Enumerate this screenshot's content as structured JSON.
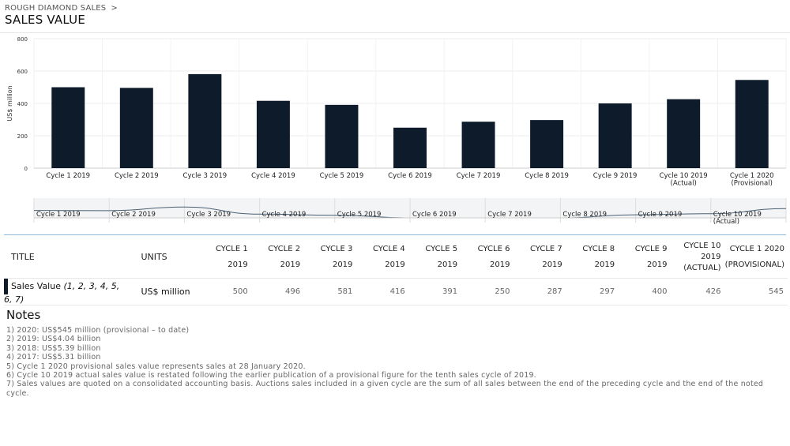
{
  "breadcrumb": {
    "section": "ROUGH DIAMOND SALES",
    "separator": ">"
  },
  "page_title": "SALES VALUE",
  "chart_data": {
    "type": "bar",
    "ylabel": "US$ million",
    "ylim": [
      0,
      800
    ],
    "yticks": [
      0,
      200,
      400,
      600,
      800
    ],
    "categories": [
      [
        "Cycle 1 2019"
      ],
      [
        "Cycle 2 2019"
      ],
      [
        "Cycle 3 2019"
      ],
      [
        "Cycle 4 2019"
      ],
      [
        "Cycle 5 2019"
      ],
      [
        "Cycle 6 2019"
      ],
      [
        "Cycle 7 2019"
      ],
      [
        "Cycle 8 2019"
      ],
      [
        "Cycle 9 2019"
      ],
      [
        "Cycle 10 2019",
        "(Actual)"
      ],
      [
        "Cycle 1 2020",
        "(Provisional)"
      ]
    ],
    "values": [
      500,
      496,
      581,
      416,
      391,
      250,
      287,
      297,
      400,
      426,
      545
    ],
    "color": "#0d1b2a",
    "grid": true,
    "navigator": {
      "labels": [
        [
          "Cycle 1 2019"
        ],
        [
          "Cycle 2 2019"
        ],
        [
          "Cycle 3 2019"
        ],
        [
          "Cycle 4 2019"
        ],
        [
          "Cycle 5 2019"
        ],
        [
          "Cycle 6 2019"
        ],
        [
          "Cycle 7 2019"
        ],
        [
          "Cycle 8 2019"
        ],
        [
          "Cycle 9 2019"
        ],
        [
          "Cycle 10 2019",
          "(Actual)"
        ]
      ],
      "line_color": "#4a6175",
      "fill_color": "#f3f4f6"
    }
  },
  "table": {
    "headers": {
      "title": "TITLE",
      "units": "UNITS",
      "cycles": [
        [
          "CYCLE 1",
          "2019"
        ],
        [
          "CYCLE 2",
          "2019"
        ],
        [
          "CYCLE 3",
          "2019"
        ],
        [
          "CYCLE 4",
          "2019"
        ],
        [
          "CYCLE 5",
          "2019"
        ],
        [
          "CYCLE 6",
          "2019"
        ],
        [
          "CYCLE 7",
          "2019"
        ],
        [
          "CYCLE 8",
          "2019"
        ],
        [
          "CYCLE 9",
          "2019"
        ],
        [
          "CYCLE 10",
          "2019",
          "(ACTUAL)"
        ],
        [
          "CYCLE 1 2020",
          "(PROVISIONAL)"
        ]
      ]
    },
    "row": {
      "title": "Sales Value",
      "footnotes": "(1, 2, 3, 4, 5, 6, 7)",
      "units": "US$ million",
      "values": [
        "500",
        "496",
        "581",
        "416",
        "391",
        "250",
        "287",
        "297",
        "400",
        "426",
        "545"
      ]
    }
  },
  "notes": {
    "title": "Notes",
    "items": [
      "1) 2020: US$545 million (provisional – to date)",
      "2) 2019: US$4.04 billion",
      "3) 2018: US$5.39 billion",
      "4) 2017: US$5.31 billion",
      "5) Cycle 1 2020 provisional sales value represents sales at 28 January 2020.",
      "6) Cycle 10 2019 actual sales value is restated following the earlier publication of a provisional figure for the tenth sales cycle of 2019.",
      "7) Sales values are quoted on a consolidated accounting basis. Auctions sales included in a given cycle are the sum of all sales between the end of the preceding cycle and the end of the noted cycle."
    ]
  }
}
